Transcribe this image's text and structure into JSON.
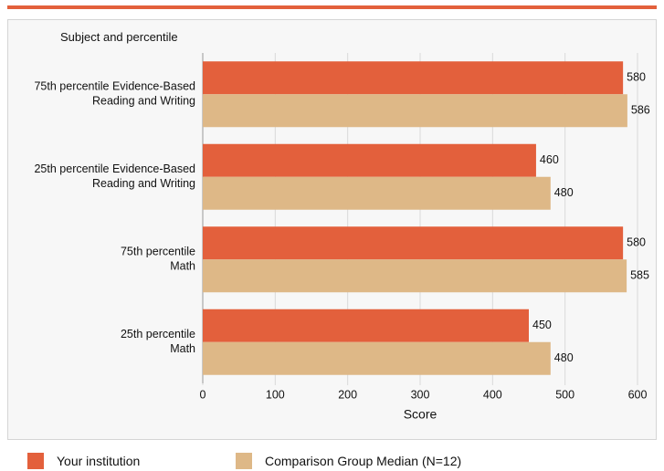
{
  "chart_data": {
    "type": "bar",
    "orientation": "horizontal",
    "title": "Subject and percentile",
    "xlabel": "Score",
    "ylabel": "",
    "xlim": [
      0,
      600
    ],
    "xticks": [
      0,
      100,
      200,
      300,
      400,
      500,
      600
    ],
    "grid": true,
    "legend_position": "bottom",
    "categories": [
      [
        "75th percentile Evidence-Based",
        "Reading and Writing"
      ],
      [
        "25th percentile Evidence-Based",
        "Reading and Writing"
      ],
      [
        "75th percentile",
        "Math"
      ],
      [
        "25th percentile",
        "Math"
      ]
    ],
    "series": [
      {
        "name": "Your institution",
        "color": "#e3603c",
        "values": [
          580,
          460,
          580,
          450
        ]
      },
      {
        "name": "Comparison Group Median (N=12)",
        "color": "#deb887",
        "values": [
          586,
          480,
          585,
          480
        ]
      }
    ]
  },
  "colors": {
    "accent": "#e3603c",
    "background": "#f7f7f7",
    "grid": "#d9d9d9"
  }
}
